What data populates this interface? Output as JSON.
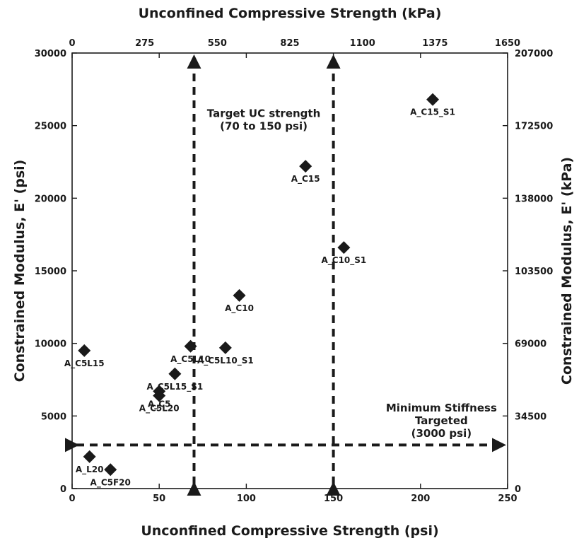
{
  "chart_data": {
    "type": "scatter",
    "xlabel": "Unconfined Compressive Strength (psi)",
    "ylabel": "Constrained Modulus, E' (psi)",
    "xlabel_top": "Unconfined Compressive Strength (kPa)",
    "ylabel_right": "Constrained Modulus, E' (kPa)",
    "xlim": [
      0,
      250
    ],
    "ylim": [
      0,
      30000
    ],
    "x_ticks": [
      0,
      50,
      100,
      150,
      200,
      250
    ],
    "y_ticks": [
      0,
      5000,
      10000,
      15000,
      20000,
      25000,
      30000
    ],
    "x_top_tick_labels": [
      "0",
      "275",
      "550",
      "825",
      "1100",
      "1375",
      "1650"
    ],
    "y_right_tick_labels": [
      "0",
      "34500",
      "69000",
      "103500",
      "138000",
      "172500",
      "207000"
    ],
    "grid": false,
    "series": [
      {
        "marker": "diamond",
        "color": "#1a1a1a",
        "points": [
          {
            "label": "A_L20",
            "x": 10,
            "y": 2200
          },
          {
            "label": "A_C5F20",
            "x": 22,
            "y": 1300
          },
          {
            "label": "A_C5L15",
            "x": 7,
            "y": 9500
          },
          {
            "label": "A_C5",
            "x": 50,
            "y": 6700
          },
          {
            "label": "A_C5L20",
            "x": 50,
            "y": 6400
          },
          {
            "label": "A_C5L15_S1",
            "x": 59,
            "y": 7900
          },
          {
            "label": "A_C5L10",
            "x": 68,
            "y": 9800
          },
          {
            "label": "A_C5L10_S1",
            "x": 88,
            "y": 9700
          },
          {
            "label": "A_C10",
            "x": 96,
            "y": 13300
          },
          {
            "label": "A_C15",
            "x": 134,
            "y": 22200
          },
          {
            "label": "A_C10_S1",
            "x": 156,
            "y": 16600
          },
          {
            "label": "A_C15_S1",
            "x": 207,
            "y": 26800
          }
        ]
      }
    ],
    "reference_lines": [
      {
        "orientation": "vertical",
        "x": 70,
        "style": "dashed"
      },
      {
        "orientation": "vertical",
        "x": 150,
        "style": "dashed"
      },
      {
        "orientation": "horizontal",
        "y": 3000,
        "style": "dashed"
      }
    ],
    "annotations": [
      {
        "lines": [
          "Target UC strength",
          "(70 to 150 psi)"
        ],
        "x": 110,
        "y": 25600
      },
      {
        "lines": [
          "Minimum Stiffness",
          "Targeted",
          "(3000 psi)"
        ],
        "x": 212,
        "y": 5300
      }
    ]
  }
}
